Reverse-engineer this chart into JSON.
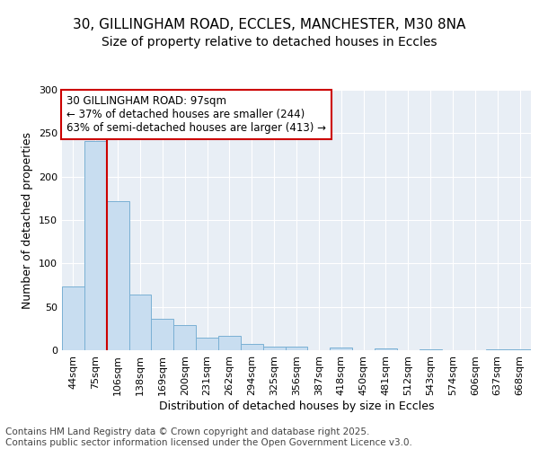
{
  "title_line1": "30, GILLINGHAM ROAD, ECCLES, MANCHESTER, M30 8NA",
  "title_line2": "Size of property relative to detached houses in Eccles",
  "xlabel": "Distribution of detached houses by size in Eccles",
  "ylabel": "Number of detached properties",
  "categories": [
    "44sqm",
    "75sqm",
    "106sqm",
    "138sqm",
    "169sqm",
    "200sqm",
    "231sqm",
    "262sqm",
    "294sqm",
    "325sqm",
    "356sqm",
    "387sqm",
    "418sqm",
    "450sqm",
    "481sqm",
    "512sqm",
    "543sqm",
    "574sqm",
    "606sqm",
    "637sqm",
    "668sqm"
  ],
  "values": [
    73,
    241,
    172,
    64,
    36,
    29,
    14,
    17,
    7,
    4,
    4,
    0,
    3,
    0,
    2,
    0,
    1,
    0,
    0,
    1,
    1
  ],
  "bar_color": "#c8ddf0",
  "bar_edge_color": "#7ab0d4",
  "property_line_color": "#cc0000",
  "property_line_x": 1.5,
  "annotation_text": "30 GILLINGHAM ROAD: 97sqm\n← 37% of detached houses are smaller (244)\n63% of semi-detached houses are larger (413) →",
  "annotation_box_facecolor": "#ffffff",
  "annotation_box_edgecolor": "#cc0000",
  "ylim": [
    0,
    300
  ],
  "yticks": [
    0,
    50,
    100,
    150,
    200,
    250,
    300
  ],
  "bg_color": "#ffffff",
  "plot_bg_color": "#e8eef5",
  "grid_color": "#ffffff",
  "title_fontsize": 11,
  "subtitle_fontsize": 10,
  "axis_label_fontsize": 9,
  "tick_fontsize": 8,
  "annotation_fontsize": 8.5,
  "footer_fontsize": 7.5,
  "footer_text": "Contains HM Land Registry data © Crown copyright and database right 2025.\nContains public sector information licensed under the Open Government Licence v3.0."
}
